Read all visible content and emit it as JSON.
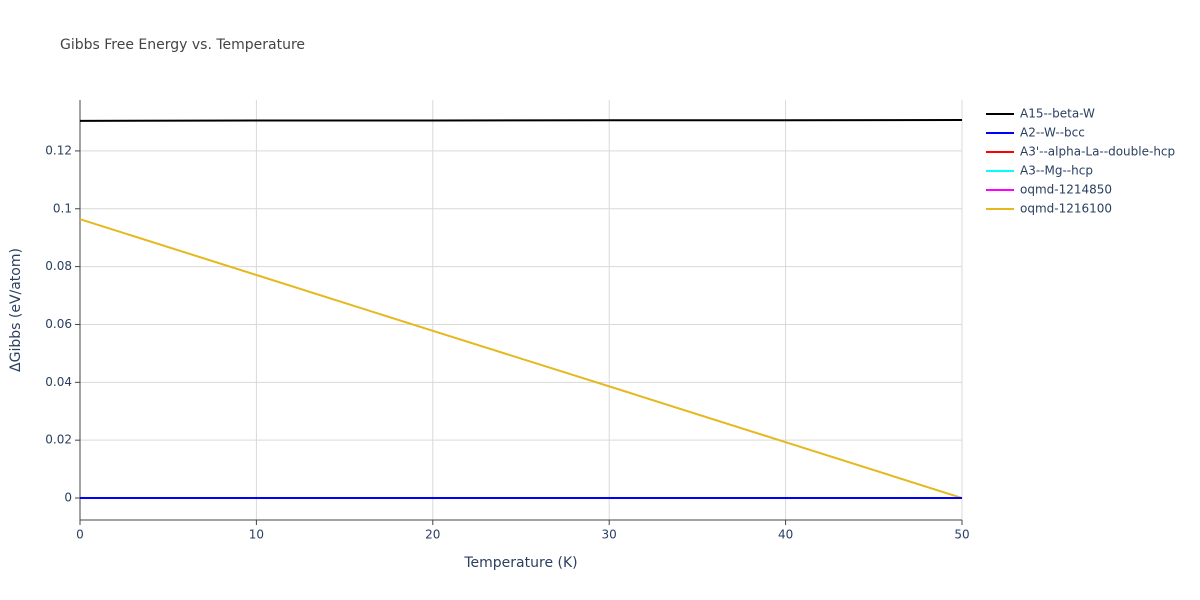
{
  "chart_data": {
    "type": "line",
    "title": "Gibbs Free Energy vs. Temperature",
    "x_label": "Temperature (K)",
    "y_label": "ΔGibbs (eV/atom)",
    "x": [
      0,
      10,
      20,
      30,
      40,
      50
    ],
    "series": [
      {
        "name": "A15--beta-W",
        "color": "#000000",
        "values": [
          0.1304,
          0.1305,
          0.1305,
          0.1306,
          0.1306,
          0.1307
        ]
      },
      {
        "name": "A2--W--bcc",
        "color": "#0000ff",
        "values": [
          0,
          0,
          0,
          0,
          0,
          0
        ]
      },
      {
        "name": "A3'--alpha-La--double-hcp",
        "color": "#ff0000",
        "values": [
          0,
          0,
          0,
          0,
          0,
          0
        ]
      },
      {
        "name": "A3--Mg--hcp",
        "color": "#00ffff",
        "values": [
          0,
          0,
          0,
          0,
          0,
          0
        ]
      },
      {
        "name": "oqmd-1214850",
        "color": "#ff00ff",
        "values": [
          0,
          0,
          0,
          0,
          0,
          0
        ]
      },
      {
        "name": "oqmd-1216100",
        "color": "#e5b81e",
        "values": [
          0.0964,
          0.0771,
          0.0578,
          0.0386,
          0.0193,
          0
        ]
      }
    ],
    "xlim": [
      0,
      50
    ],
    "xticks": [
      0,
      10,
      20,
      30,
      40,
      50
    ],
    "ylim": [
      -0.0076,
      0.1376
    ],
    "yticks": [
      0,
      0.02,
      0.04,
      0.06,
      0.08,
      0.1,
      0.12
    ],
    "grid": true,
    "legend": "right"
  }
}
